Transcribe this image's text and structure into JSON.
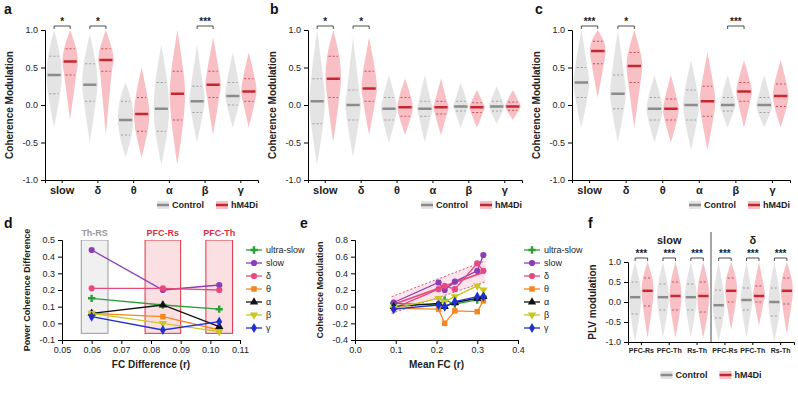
{
  "chart_data": [
    {
      "type": "violin",
      "title": "a",
      "categories": [
        "slow",
        "δ",
        "θ",
        "α",
        "β",
        "γ"
      ],
      "ylabel": "Coherence Modulation",
      "ylim": [
        -1,
        1
      ],
      "yticks": [
        {
          "value": -1,
          "label": "-1.0"
        },
        -0.5,
        {
          "value": 0,
          "label": "0.0"
        },
        0.5,
        {
          "value": 1,
          "label": "1.0"
        }
      ],
      "legend": "bottom-right",
      "series": [
        {
          "name": "Control",
          "color": "#a6a6a6",
          "median": [
            0.4,
            0.27,
            -0.2,
            -0.05,
            0.05,
            0.12
          ],
          "q1": [
            0.15,
            0.05,
            -0.4,
            -0.35,
            -0.1,
            0.0
          ],
          "q3": [
            0.65,
            0.55,
            0.05,
            0.3,
            0.25,
            0.3
          ],
          "min": [
            -0.3,
            -0.5,
            -0.7,
            -0.8,
            -0.5,
            -0.3
          ],
          "max": [
            1.0,
            0.95,
            0.3,
            0.8,
            0.8,
            0.7
          ]
        },
        {
          "name": "hM4Di",
          "color": "#e8303a",
          "median": [
            0.58,
            0.6,
            -0.12,
            0.15,
            0.27,
            0.18
          ],
          "q1": [
            0.4,
            0.45,
            -0.35,
            -0.2,
            0.1,
            0.05
          ],
          "q3": [
            0.75,
            0.75,
            0.1,
            0.45,
            0.45,
            0.35
          ],
          "min": [
            -0.2,
            -0.4,
            -0.7,
            -0.8,
            -0.4,
            -0.3
          ],
          "max": [
            1.0,
            1.0,
            0.5,
            1.0,
            0.9,
            0.7
          ]
        }
      ],
      "annotations": [
        {
          "category": 0,
          "label": "*"
        },
        {
          "category": 1,
          "label": "*"
        },
        {
          "category": 4,
          "label": "***"
        }
      ]
    },
    {
      "type": "violin",
      "title": "b",
      "categories": [
        "slow",
        "δ",
        "θ",
        "α",
        "β",
        "γ"
      ],
      "ylabel": "Coherence Modulation",
      "ylim": [
        -1,
        1
      ],
      "yticks": [
        {
          "value": -1,
          "label": "-1.0"
        },
        -0.5,
        {
          "value": 0,
          "label": "0.0"
        },
        0.5,
        {
          "value": 1,
          "label": "1.0"
        }
      ],
      "legend": "bottom-right",
      "series": [
        {
          "name": "Control",
          "color": "#a6a6a6",
          "median": [
            0.05,
            0.0,
            -0.05,
            -0.05,
            -0.02,
            -0.02
          ],
          "q1": [
            -0.25,
            -0.2,
            -0.2,
            -0.15,
            -0.08,
            -0.08
          ],
          "q3": [
            0.35,
            0.2,
            0.1,
            0.05,
            0.05,
            0.05
          ],
          "min": [
            -0.8,
            -0.7,
            -0.5,
            -0.5,
            -0.3,
            -0.25
          ],
          "max": [
            1.0,
            0.9,
            0.4,
            0.4,
            0.3,
            0.25
          ]
        },
        {
          "name": "hM4Di",
          "color": "#e8303a",
          "median": [
            0.35,
            0.22,
            -0.03,
            -0.03,
            -0.03,
            -0.02
          ],
          "q1": [
            0.1,
            0.05,
            -0.15,
            -0.12,
            -0.1,
            -0.07
          ],
          "q3": [
            0.65,
            0.45,
            0.1,
            0.05,
            0.03,
            0.04
          ],
          "min": [
            -0.5,
            -0.4,
            -0.4,
            -0.4,
            -0.3,
            -0.2
          ],
          "max": [
            1.0,
            0.9,
            0.35,
            0.35,
            0.2,
            0.2
          ]
        }
      ],
      "annotations": [
        {
          "category": 0,
          "label": "*"
        },
        {
          "category": 1,
          "label": "*"
        }
      ]
    },
    {
      "type": "violin",
      "title": "c",
      "categories": [
        "slow",
        "δ",
        "θ",
        "α",
        "β",
        "γ"
      ],
      "ylabel": "Coherence Modulation",
      "ylim": [
        -1,
        1
      ],
      "yticks": [
        {
          "value": -1,
          "label": "-1.0"
        },
        -0.5,
        {
          "value": 0,
          "label": "0.0"
        },
        0.5,
        {
          "value": 1,
          "label": "1.0"
        }
      ],
      "legend": "bottom-right",
      "series": [
        {
          "name": "Control",
          "color": "#a6a6a6",
          "median": [
            0.3,
            0.15,
            -0.05,
            0.0,
            0.0,
            0.0
          ],
          "q1": [
            0.1,
            -0.05,
            -0.2,
            -0.2,
            -0.08,
            -0.1
          ],
          "q3": [
            0.5,
            0.4,
            0.1,
            0.2,
            0.1,
            0.1
          ],
          "min": [
            -0.3,
            -0.5,
            -0.5,
            -0.6,
            -0.3,
            -0.3
          ],
          "max": [
            1.0,
            1.0,
            0.4,
            0.6,
            0.4,
            0.4
          ]
        },
        {
          "name": "hM4Di",
          "color": "#e8303a",
          "median": [
            0.72,
            0.52,
            -0.05,
            0.05,
            0.18,
            0.12
          ],
          "q1": [
            0.55,
            0.3,
            -0.2,
            -0.15,
            0.05,
            -0.02
          ],
          "q3": [
            0.85,
            0.7,
            0.08,
            0.25,
            0.3,
            0.28
          ],
          "min": [
            0.1,
            -0.3,
            -0.5,
            -0.6,
            -0.3,
            -0.3
          ],
          "max": [
            1.0,
            1.0,
            0.4,
            0.7,
            0.6,
            0.6
          ]
        }
      ],
      "annotations": [
        {
          "category": 0,
          "label": "***"
        },
        {
          "category": 1,
          "label": "*"
        },
        {
          "category": 4,
          "label": "***"
        }
      ]
    },
    {
      "type": "line",
      "title": "d",
      "xlabel": "FC Difference (r)",
      "ylabel": "Power Coherence Difference",
      "x": [
        0.06,
        0.084,
        0.103
      ],
      "xlim": [
        0.05,
        0.11
      ],
      "ylim": [
        -0.1,
        0.5
      ],
      "xticks": [
        0.05,
        0.06,
        0.07,
        0.08,
        0.09,
        {
          "value": 0.1,
          "label": "0.10"
        },
        0.11
      ],
      "yticks": [
        -0.1,
        {
          "value": 0,
          "label": "0.0"
        },
        0.1,
        0.2,
        0.3,
        0.4,
        0.5
      ],
      "legend": "right",
      "regions": [
        {
          "label": "Th-RS",
          "x0": 0.0565,
          "x1": 0.0655,
          "y0": -0.06,
          "y1": 0.5,
          "color": "#9a9a9a"
        },
        {
          "label": "PFC-Rs",
          "x0": 0.078,
          "x1": 0.09,
          "y0": -0.06,
          "y1": 0.5,
          "color": "#e03040"
        },
        {
          "label": "PFC-Th",
          "x0": 0.0985,
          "x1": 0.1075,
          "y0": -0.06,
          "y1": 0.5,
          "color": "#e03040"
        }
      ],
      "series": [
        {
          "name": "ultra-slow",
          "color": "#2e9e3a",
          "marker": "cross",
          "values": [
            0.15,
            0.11,
            0.085
          ]
        },
        {
          "name": "slow",
          "color": "#8e3bb5",
          "marker": "circle",
          "values": [
            0.44,
            0.2,
            0.23
          ]
        },
        {
          "name": "δ",
          "color": "#e64980",
          "marker": "circle",
          "values": [
            0.21,
            0.21,
            0.2
          ]
        },
        {
          "name": "θ",
          "color": "#f5871f",
          "marker": "square",
          "values": [
            0.06,
            0.04,
            -0.04
          ]
        },
        {
          "name": "α",
          "color": "#111111",
          "marker": "triangle",
          "values": [
            0.06,
            0.11,
            -0.02
          ]
        },
        {
          "name": "β",
          "color": "#c8c820",
          "marker": "triangle-down",
          "values": [
            0.06,
            0.0,
            -0.05
          ]
        },
        {
          "name": "γ",
          "color": "#2030d0",
          "marker": "diamond",
          "values": [
            0.04,
            -0.04,
            0.01
          ]
        }
      ]
    },
    {
      "type": "line",
      "title": "e",
      "xlabel": "Mean FC (r)",
      "ylabel": "Coherence Modulation",
      "x": [
        0.095,
        0.205,
        0.22,
        0.245,
        0.3,
        0.315
      ],
      "xlim": [
        0,
        0.4
      ],
      "ylim": [
        -0.4,
        0.8
      ],
      "xticks": [
        {
          "value": 0,
          "label": "0.0"
        },
        0.1,
        0.2,
        0.3,
        0.4
      ],
      "yticks": [
        -0.4,
        -0.2,
        {
          "value": 0,
          "label": "0.0"
        },
        0.2,
        0.4,
        0.6,
        0.8
      ],
      "legend": "right",
      "fit": {
        "x": [
          0.09,
          0.32
        ],
        "values": [
          0.02,
          0.42
        ],
        "upper": [
          0.12,
          0.55
        ],
        "lower": [
          -0.08,
          0.3
        ],
        "color": "#e64980"
      },
      "series": [
        {
          "name": "ultra-slow",
          "color": "#2e9e3a",
          "marker": "cross",
          "values": [
            0.04,
            0.02,
            0.08,
            0.03,
            0.08,
            0.12
          ]
        },
        {
          "name": "slow",
          "color": "#8e3bb5",
          "marker": "circle",
          "values": [
            0.05,
            0.29,
            0.2,
            0.3,
            0.43,
            0.62
          ]
        },
        {
          "name": "δ",
          "color": "#e64980",
          "marker": "circle",
          "values": [
            -0.02,
            0.21,
            0.25,
            0.21,
            0.52,
            0.43
          ]
        },
        {
          "name": "θ",
          "color": "#f5871f",
          "marker": "square",
          "values": [
            -0.02,
            -0.03,
            -0.2,
            -0.05,
            -0.06,
            0.07
          ]
        },
        {
          "name": "α",
          "color": "#111111",
          "marker": "triangle",
          "values": [
            0.0,
            0.04,
            0.0,
            0.05,
            0.1,
            0.12
          ]
        },
        {
          "name": "β",
          "color": "#c8c820",
          "marker": "triangle-down",
          "values": [
            -0.02,
            0.1,
            0.06,
            0.12,
            0.25,
            0.2
          ]
        },
        {
          "name": "γ",
          "color": "#2030d0",
          "marker": "diamond",
          "values": [
            -0.03,
            0.02,
            0.0,
            0.06,
            0.12,
            0.12
          ]
        }
      ]
    },
    {
      "type": "violin",
      "title": "f",
      "categories": [
        "PFC-Rs",
        "PFC-Th",
        "Rs-Th",
        "PFC-Rs",
        "PFC-Th",
        "Rs-Th"
      ],
      "ylabel": "PLV modulation",
      "ylim": [
        -1,
        1
      ],
      "yticks": [
        {
          "value": -1,
          "label": "-1.0"
        },
        -0.5,
        {
          "value": 0,
          "label": "0.0"
        },
        0.5,
        {
          "value": 1,
          "label": "1.0"
        }
      ],
      "legend": "bottom",
      "groups": [
        {
          "label": "slow",
          "start": 0,
          "end": 2
        },
        {
          "label": "δ",
          "start": 3,
          "end": 5
        }
      ],
      "series": [
        {
          "name": "Control",
          "color": "#a6a6a6",
          "median": [
            0.12,
            0.12,
            0.12,
            -0.08,
            0.05,
            0.0
          ],
          "q1": [
            -0.3,
            -0.2,
            -0.2,
            -0.4,
            -0.2,
            -0.35
          ],
          "q3": [
            0.5,
            0.45,
            0.45,
            0.3,
            0.35,
            0.35
          ],
          "min": [
            -1,
            -0.9,
            -0.9,
            -1,
            -0.9,
            -1
          ],
          "max": [
            1,
            1,
            1,
            1,
            1,
            1
          ]
        },
        {
          "name": "hM4Di",
          "color": "#e8303a",
          "median": [
            0.28,
            0.15,
            0.15,
            0.28,
            0.15,
            0.28
          ],
          "q1": [
            -0.1,
            -0.2,
            -0.25,
            0.0,
            0.0,
            -0.05
          ],
          "q3": [
            0.6,
            0.5,
            0.5,
            0.6,
            0.4,
            0.6
          ],
          "min": [
            -0.9,
            -0.9,
            -0.9,
            -0.7,
            -0.6,
            -0.8
          ],
          "max": [
            1,
            1,
            1,
            1,
            1,
            1
          ]
        }
      ],
      "annotations": [
        {
          "category": 0,
          "label": "***"
        },
        {
          "category": 1,
          "label": "***"
        },
        {
          "category": 2,
          "label": "***"
        },
        {
          "category": 3,
          "label": "***"
        },
        {
          "category": 4,
          "label": "***"
        },
        {
          "category": 5,
          "label": "***"
        }
      ]
    }
  ]
}
